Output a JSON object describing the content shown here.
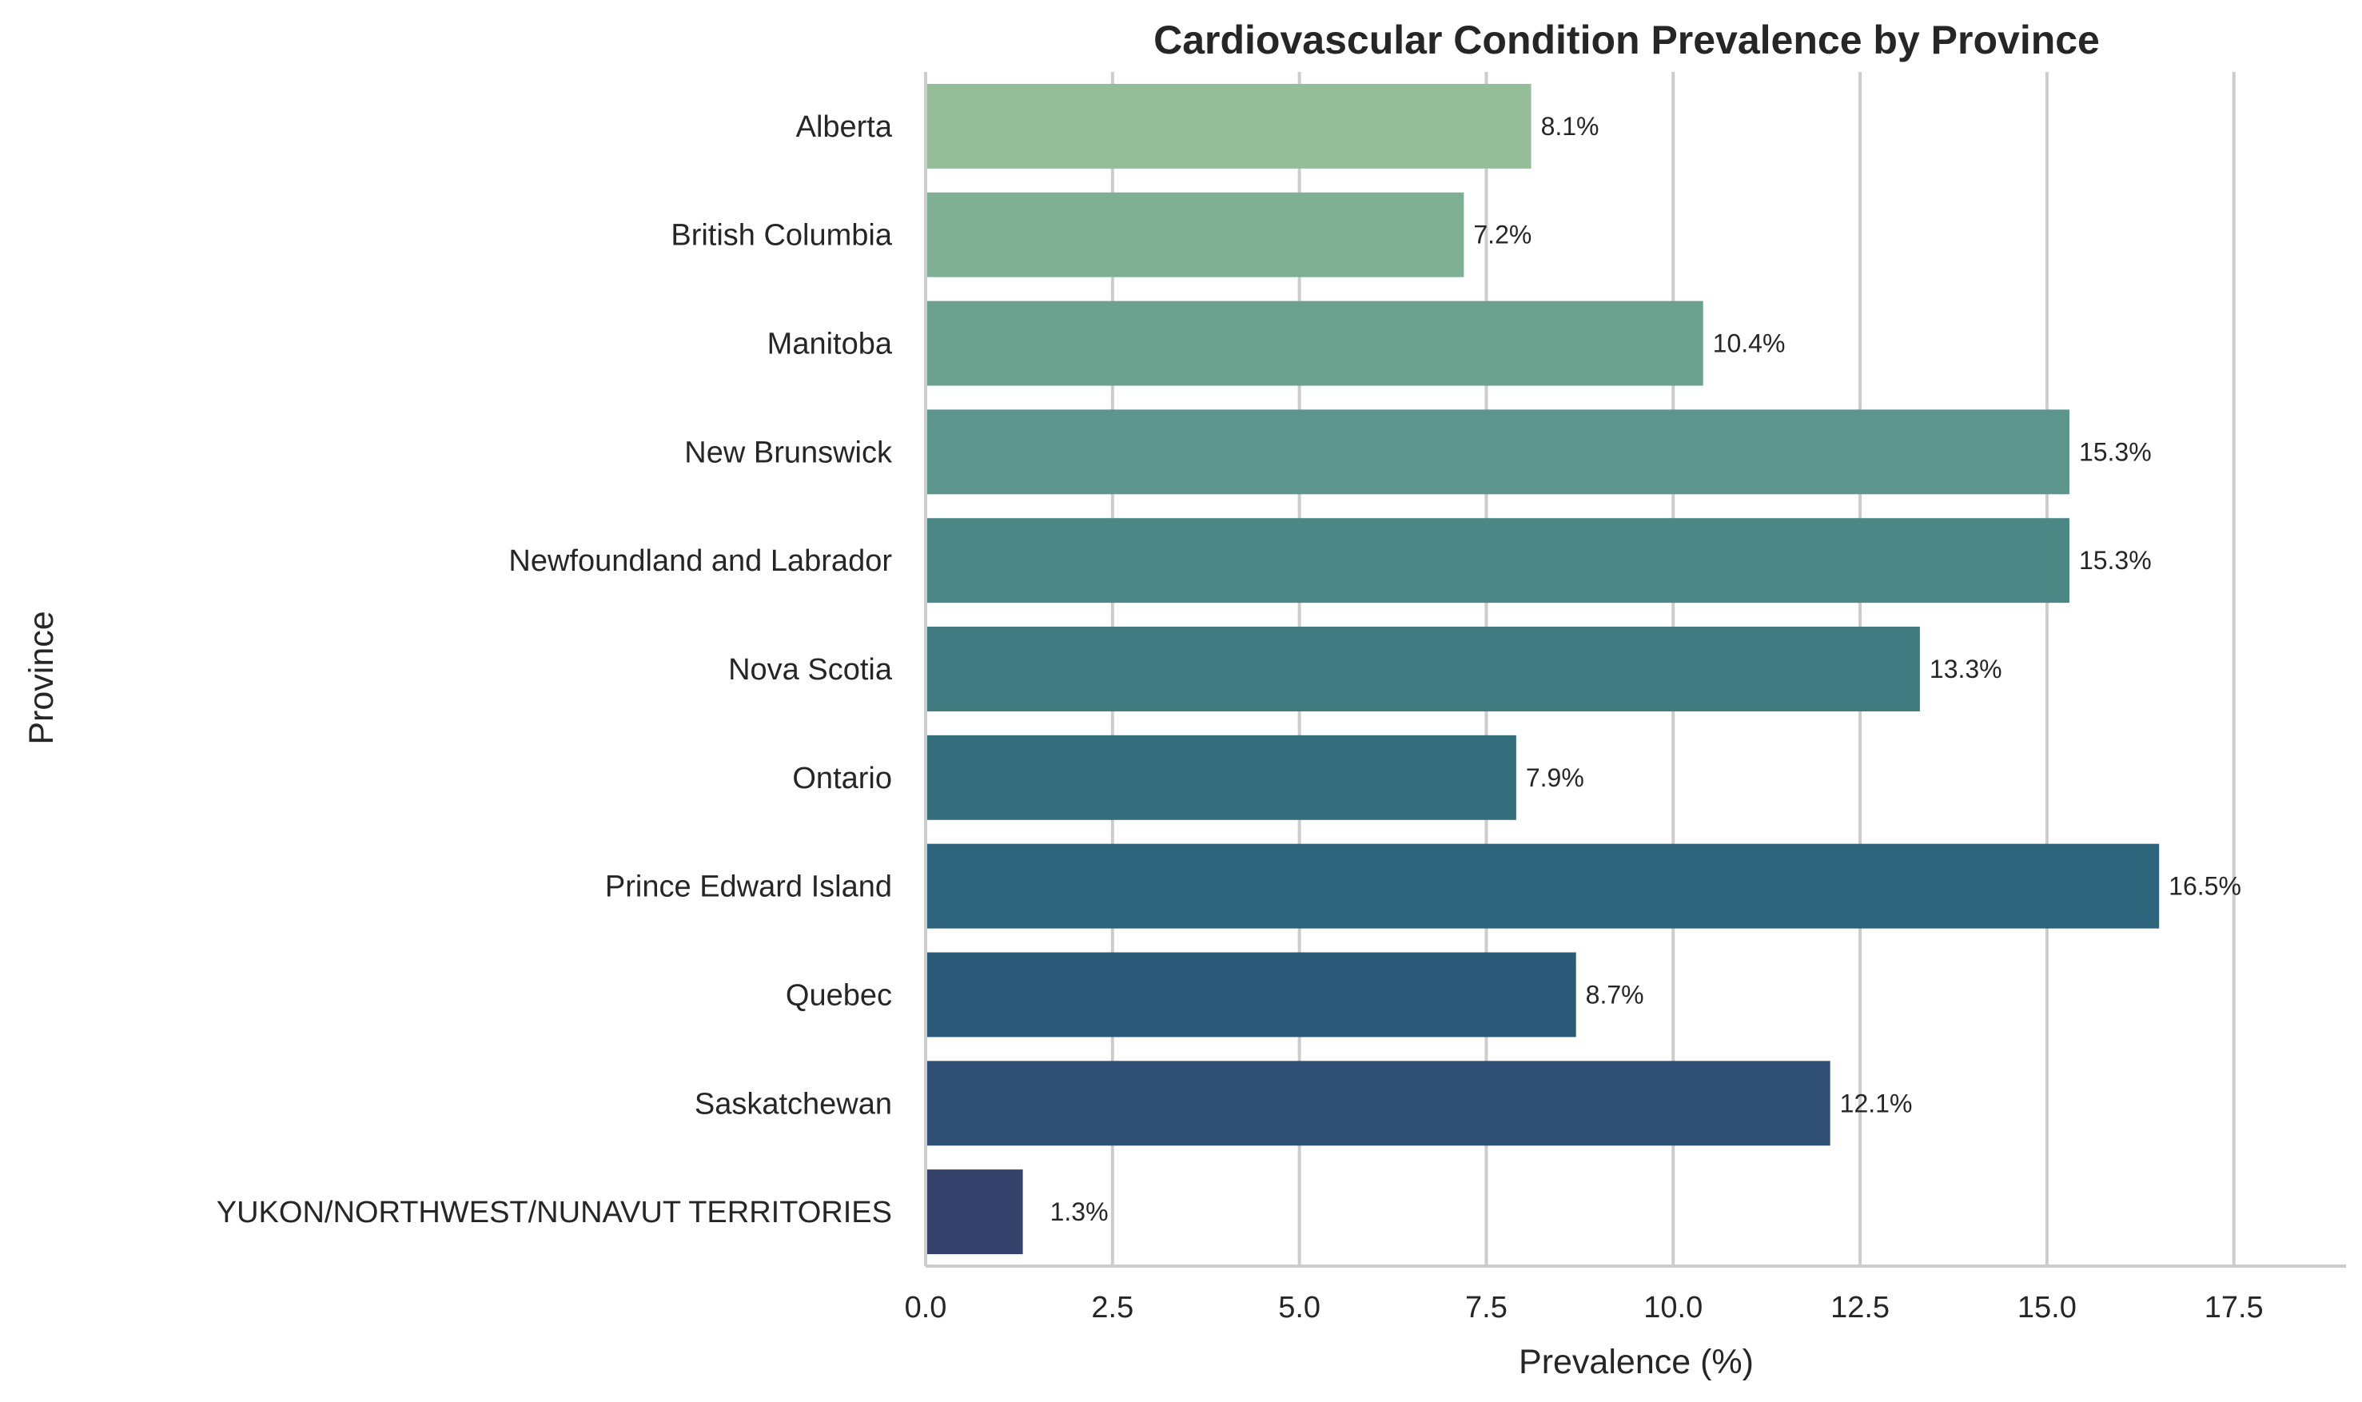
{
  "chart_data": {
    "type": "bar",
    "orientation": "horizontal",
    "title": "Cardiovascular Condition Prevalence by Province",
    "xlabel": "Prevalence (%)",
    "ylabel": "Province",
    "categories": [
      "Alberta",
      "British Columbia",
      "Manitoba",
      "New Brunswick",
      "Newfoundland and Labrador",
      "Nova Scotia",
      "Ontario",
      "Prince Edward Island",
      "Quebec",
      "Saskatchewan",
      "YUKON/NORTHWEST/NUNAVUT TERRITORIES"
    ],
    "values": [
      8.1,
      7.2,
      10.4,
      15.3,
      15.3,
      13.3,
      7.9,
      16.5,
      8.7,
      12.1,
      1.3
    ],
    "data_labels": [
      "8.1%",
      "7.2%",
      "10.4%",
      "15.3%",
      "15.3%",
      "13.3%",
      "7.9%",
      "16.5%",
      "8.7%",
      "12.1%",
      "1.3%"
    ],
    "xlim": [
      0,
      19
    ],
    "xticks": [
      0,
      2.5,
      5,
      7.5,
      10,
      12.5,
      15,
      17.5
    ],
    "xtick_labels": [
      "0.0",
      "2.5",
      "5.0",
      "7.5",
      "10.0",
      "12.5",
      "15.0",
      "17.5"
    ],
    "colors": [
      "#95bd98",
      "#7fb093",
      "#6ba18e",
      "#5b958c",
      "#4b8785",
      "#3f7a80",
      "#356e7d",
      "#2d647b",
      "#2c5a79",
      "#2f4f75",
      "#35426c"
    ],
    "grid": "vertical",
    "legend": "none"
  }
}
